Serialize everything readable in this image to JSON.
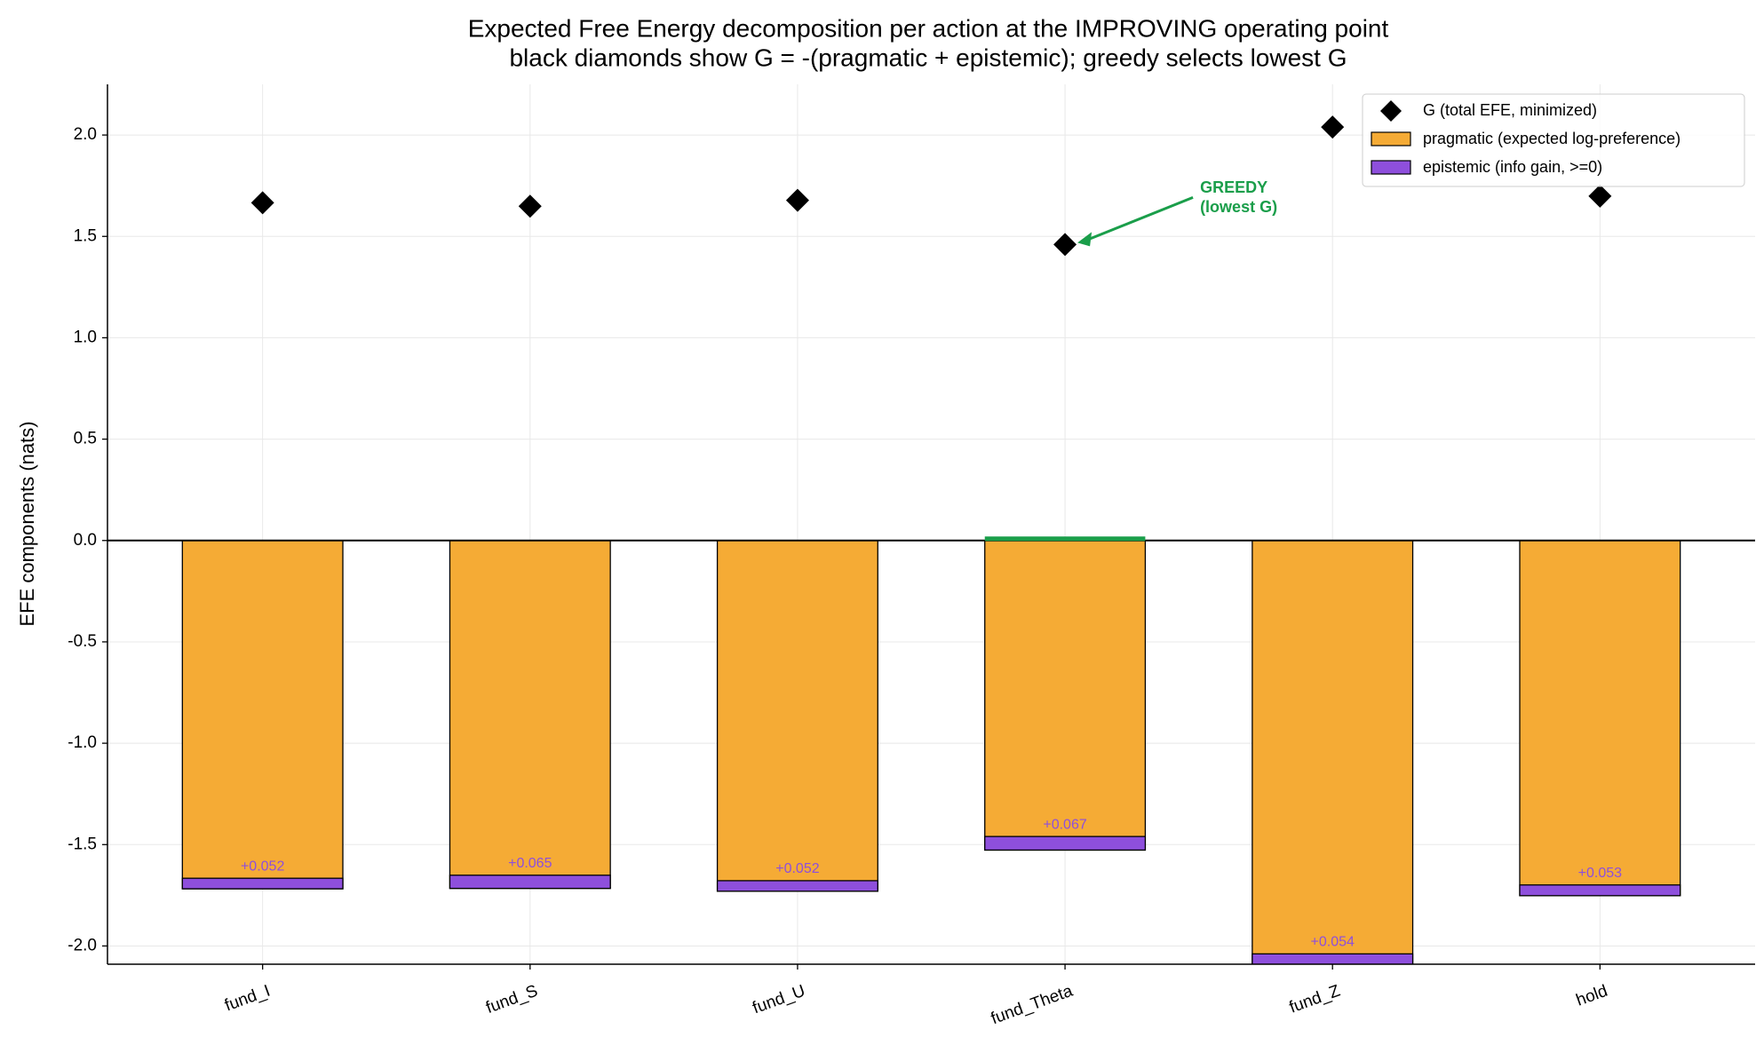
{
  "chart_data": {
    "type": "bar",
    "title": "Expected Free Energy decomposition per action at the IMPROVING operating point",
    "subtitle": "black diamonds show G = -(pragmatic + epistemic); greedy selects lowest G",
    "y_label": "EFE components (nats)",
    "categories": [
      "fund_I",
      "fund_S",
      "fund_U",
      "fund_Theta",
      "fund_Z",
      "hold"
    ],
    "series": [
      {
        "name": "pragmatic (expected log-preference)",
        "color": "#f5ab35",
        "values": [
          -1.718,
          -1.716,
          -1.73,
          -1.527,
          -2.093,
          -1.752
        ]
      },
      {
        "name": "epistemic (info gain, >=0)",
        "color": "#8e4fdc",
        "values": [
          0.052,
          0.065,
          0.052,
          0.067,
          0.054,
          0.053
        ],
        "value_labels": [
          "+0.052",
          "+0.065",
          "+0.052",
          "+0.067",
          "+0.054",
          "+0.053"
        ]
      },
      {
        "name": "G (total EFE, minimized)",
        "color": "#000000",
        "marker": "diamond",
        "values": [
          1.666,
          1.649,
          1.678,
          1.46,
          2.039,
          1.699
        ]
      }
    ],
    "annotation": [
      "GREEDY",
      "(lowest G)"
    ],
    "annotation_color": "#1a9e4a",
    "ylim": [
      -2.09,
      2.25
    ],
    "yticks": [
      {
        "value": -2.0,
        "label": "-2.0"
      },
      -1.5,
      {
        "value": -1.0,
        "label": "-1.0"
      },
      -0.5,
      {
        "value": 0.0,
        "label": "0.0"
      },
      0.5,
      {
        "value": 1.0,
        "label": "1.0"
      },
      1.5,
      {
        "value": 2.0,
        "label": "2.0"
      }
    ],
    "grid": true,
    "legend": "upper right"
  }
}
